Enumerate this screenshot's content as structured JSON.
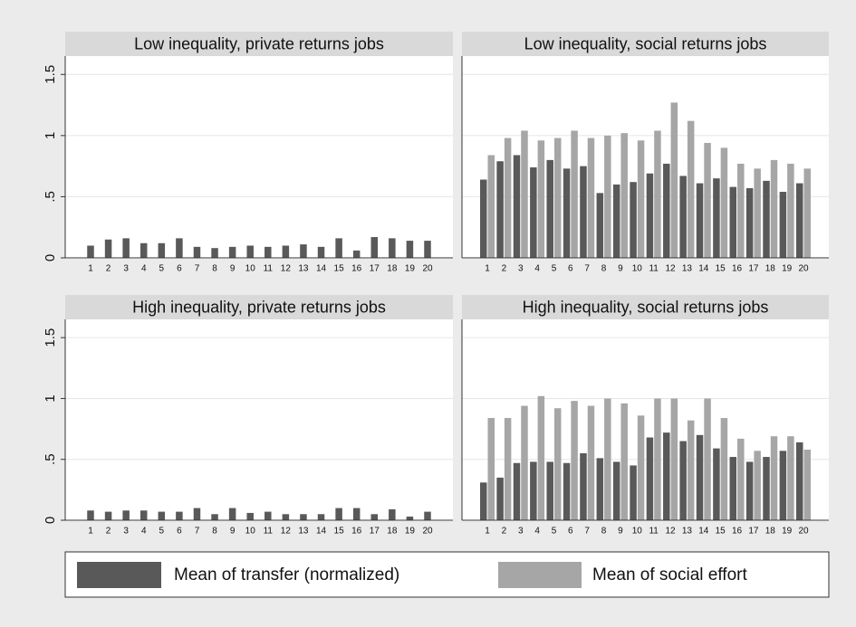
{
  "chart_data": [
    {
      "type": "bar",
      "title": "Low inequality, private returns jobs",
      "categories": [
        "1",
        "2",
        "3",
        "4",
        "5",
        "6",
        "7",
        "8",
        "9",
        "10",
        "11",
        "12",
        "13",
        "14",
        "15",
        "16",
        "17",
        "18",
        "19",
        "20"
      ],
      "series": [
        {
          "name": "Mean of transfer (normalized)",
          "color": "#595959",
          "values": [
            0.1,
            0.15,
            0.16,
            0.12,
            0.12,
            0.16,
            0.09,
            0.08,
            0.09,
            0.1,
            0.09,
            0.1,
            0.11,
            0.09,
            0.16,
            0.06,
            0.17,
            0.16,
            0.14,
            0.14
          ]
        }
      ],
      "ylim": [
        0,
        1.65
      ],
      "yticks": [
        0,
        {
          "value": 0.5,
          "label": ".5"
        },
        1,
        1.5
      ],
      "grid": true
    },
    {
      "type": "bar",
      "title": "Low inequality, social returns jobs",
      "categories": [
        "1",
        "2",
        "3",
        "4",
        "5",
        "6",
        "7",
        "8",
        "9",
        "10",
        "11",
        "12",
        "13",
        "14",
        "15",
        "16",
        "17",
        "18",
        "19",
        "20"
      ],
      "series": [
        {
          "name": "Mean of transfer (normalized)",
          "color": "#595959",
          "values": [
            0.64,
            0.79,
            0.84,
            0.74,
            0.8,
            0.73,
            0.75,
            0.53,
            0.6,
            0.62,
            0.69,
            0.77,
            0.67,
            0.61,
            0.65,
            0.58,
            0.57,
            0.63,
            0.54,
            0.61
          ]
        },
        {
          "name": "Mean of social effort",
          "color": "#a6a6a6",
          "values": [
            0.84,
            0.98,
            1.04,
            0.96,
            0.98,
            1.04,
            0.98,
            1.0,
            1.02,
            0.96,
            1.04,
            1.27,
            1.12,
            0.94,
            0.9,
            0.77,
            0.73,
            0.8,
            0.77,
            0.73
          ]
        }
      ],
      "ylim": [
        0,
        1.65
      ],
      "yticks": [
        0,
        0.5,
        1,
        1.5
      ],
      "grid": true
    },
    {
      "type": "bar",
      "title": "High inequality, private returns jobs",
      "categories": [
        "1",
        "2",
        "3",
        "4",
        "5",
        "6",
        "7",
        "8",
        "9",
        "10",
        "11",
        "12",
        "13",
        "14",
        "15",
        "16",
        "17",
        "18",
        "19",
        "20"
      ],
      "series": [
        {
          "name": "Mean of transfer (normalized)",
          "color": "#595959",
          "values": [
            0.08,
            0.07,
            0.08,
            0.08,
            0.07,
            0.07,
            0.1,
            0.05,
            0.1,
            0.06,
            0.07,
            0.05,
            0.05,
            0.05,
            0.1,
            0.1,
            0.05,
            0.09,
            0.03,
            0.07
          ]
        }
      ],
      "ylim": [
        0,
        1.65
      ],
      "yticks": [
        0,
        {
          "value": 0.5,
          "label": ".5"
        },
        1,
        1.5
      ],
      "grid": true
    },
    {
      "type": "bar",
      "title": "High inequality, social returns jobs",
      "categories": [
        "1",
        "2",
        "3",
        "4",
        "5",
        "6",
        "7",
        "8",
        "9",
        "10",
        "11",
        "12",
        "13",
        "14",
        "15",
        "16",
        "17",
        "18",
        "19",
        "20"
      ],
      "series": [
        {
          "name": "Mean of transfer (normalized)",
          "color": "#595959",
          "values": [
            0.31,
            0.35,
            0.47,
            0.48,
            0.48,
            0.47,
            0.55,
            0.51,
            0.48,
            0.45,
            0.68,
            0.72,
            0.65,
            0.7,
            0.59,
            0.52,
            0.48,
            0.52,
            0.57,
            0.64
          ]
        },
        {
          "name": "Mean of social effort",
          "color": "#a6a6a6",
          "values": [
            0.84,
            0.84,
            0.94,
            1.02,
            0.92,
            0.98,
            0.94,
            1.0,
            0.96,
            0.86,
            1.0,
            1.0,
            0.82,
            1.0,
            0.84,
            0.67,
            0.57,
            0.69,
            0.69,
            0.58
          ]
        }
      ],
      "ylim": [
        0,
        1.65
      ],
      "yticks": [
        0,
        0.5,
        1,
        1.5
      ],
      "grid": true
    }
  ]
}
